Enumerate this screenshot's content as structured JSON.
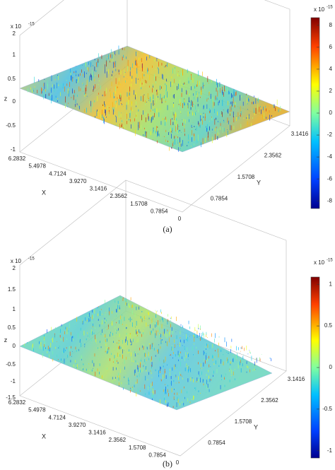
{
  "figures": [
    {
      "z_multiplier": "x 10",
      "z_exponent": "-15",
      "z_label": "z",
      "x_label": "X",
      "y_label": "Y",
      "z_ticks": [
        "2",
        "1",
        "0.5",
        "0",
        "-0.5",
        "-1"
      ],
      "x_ticks": [
        "6.2832",
        "5.4978",
        "4.7124",
        "3.9270",
        "3.1416",
        "2.3562",
        "1.5708",
        "0.7854",
        "0"
      ],
      "y_ticks": [
        "0.7854",
        "1.5708",
        "2.3562",
        "3.1416"
      ],
      "colorbar_multiplier": "x 10",
      "colorbar_exponent": "-15",
      "colorbar_ticks": [
        "8",
        "6",
        "4",
        "2",
        "0",
        "-2",
        "-4",
        "-6",
        "-8"
      ],
      "caption": "(a)"
    },
    {
      "z_multiplier": "x 10",
      "z_exponent": "-15",
      "z_label": "z",
      "x_label": "X",
      "y_label": "Y",
      "z_ticks": [
        "2",
        "1.5",
        "1",
        "0.5",
        "0",
        "-0.5",
        "-1",
        "-1.5"
      ],
      "x_ticks": [
        "6.2832",
        "5.4978",
        "4.7124",
        "3.9270",
        "3.1416",
        "2.3562",
        "1.5708",
        "0.7854",
        "0"
      ],
      "y_ticks": [
        "0.7854",
        "1.5708",
        "2.3562",
        "3.1416"
      ],
      "colorbar_multiplier": "x 10",
      "colorbar_exponent": "-15",
      "colorbar_ticks": [
        "1",
        "0.5",
        "0",
        "-0.5",
        "-1"
      ],
      "caption": "(b)"
    }
  ]
}
